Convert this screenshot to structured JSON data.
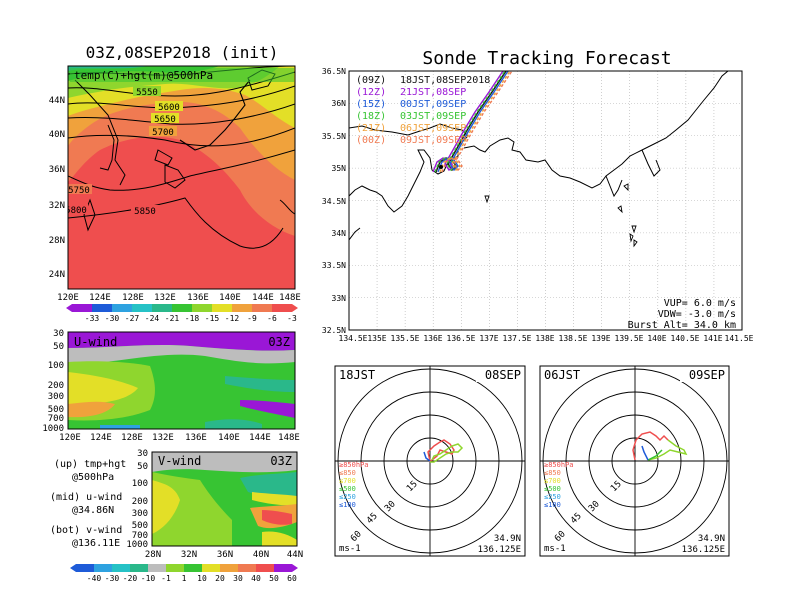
{
  "left_title": "03Z,08SEP2018 (init)",
  "right_title": "Sonde Tracking Forecast",
  "colors": {
    "purple": "#9a17d6",
    "blue": "#1e5bd8",
    "lightblue": "#2ea2e0",
    "cyan": "#26c2c6",
    "teal": "#2ab88a",
    "green": "#37c433",
    "lightgreen": "#8fd62e",
    "yellow": "#e3df27",
    "orange": "#f0a23c",
    "salmon": "#f07a52",
    "red": "#ef4e4e",
    "gray": "#bdbdbd"
  },
  "top_map": {
    "label": "temp(C)+hgt(m)@500hPa",
    "x_ticks": [
      "120E",
      "124E",
      "128E",
      "132E",
      "136E",
      "140E",
      "144E",
      "148E"
    ],
    "y_ticks": [
      "44N",
      "40N",
      "36N",
      "32N",
      "28N",
      "24N"
    ],
    "contour_labels": [
      "5550",
      "5600",
      "5650",
      "5700",
      "5750",
      "5800",
      "5850"
    ],
    "colorbar_labels": [
      "-33",
      "-30",
      "-27",
      "-24",
      "-21",
      "-18",
      "-15",
      "-12",
      "-9",
      "-6",
      "-3"
    ]
  },
  "uwind": {
    "label": "U-wind",
    "time": "03Z",
    "y_ticks": [
      "30",
      "50",
      "100",
      "200",
      "300",
      "500",
      "700",
      "1000"
    ],
    "x_ticks": [
      "120E",
      "124E",
      "128E",
      "132E",
      "136E",
      "140E",
      "144E",
      "148E"
    ]
  },
  "vwind": {
    "label": "V-wind",
    "time": "03Z",
    "y_ticks": [
      "30",
      "50",
      "100",
      "200",
      "300",
      "500",
      "700",
      "1000"
    ],
    "x_ticks": [
      "28N",
      "32N",
      "36N",
      "40N",
      "44N"
    ]
  },
  "legend_notes": [
    {
      "line1": "(up) tmp+hgt",
      "line2": "@500hPa"
    },
    {
      "line1": "(mid) u-wind",
      "line2": "@34.86N"
    },
    {
      "line1": "(bot) v-wind",
      "line2": "@136.11E"
    }
  ],
  "wind_colorbar_labels": [
    "-40",
    "-30",
    "-20",
    "-10",
    "-1",
    "1",
    "10",
    "20",
    "30",
    "40",
    "50",
    "60"
  ],
  "track_map": {
    "x_ticks": [
      "134.5E",
      "135E",
      "135.5E",
      "136E",
      "136.5E",
      "137E",
      "137.5E",
      "138E",
      "138.5E",
      "139E",
      "139.5E",
      "140E",
      "140.5E",
      "141E",
      "141.5E"
    ],
    "y_ticks": [
      "36.5N",
      "36N",
      "35.5N",
      "35N",
      "34.5N",
      "34N",
      "33.5N",
      "33N",
      "32.5N"
    ],
    "launch_legend": [
      {
        "code": "(09Z)",
        "time": "18JST,08SEP2018",
        "color": "#111111"
      },
      {
        "code": "(12Z)",
        "time": "21JST,08SEP",
        "color": "#9a17d6"
      },
      {
        "code": "(15Z)",
        "time": "00JST,09SEP",
        "color": "#1e5bd8"
      },
      {
        "code": "(18Z)",
        "time": "03JST,09SEP",
        "color": "#37c433"
      },
      {
        "code": "(21Z)",
        "time": "06JST,09SEP",
        "color": "#f0a23c"
      },
      {
        "code": "(00Z)",
        "time": "09JST,09SEP",
        "color": "#f07a52"
      }
    ],
    "params": [
      "VUP= 6.0 m/s",
      "VDW= -3.0 m/s",
      "Burst Alt= 34.0 km"
    ]
  },
  "hodographs": [
    {
      "time": "18JST",
      "date": "08SEP",
      "lat": "34.9N",
      "lon": "136.125E",
      "unit": "ms-1",
      "rings": [
        "15",
        "30",
        "45",
        "60"
      ],
      "levels": [
        "≥850hPa",
        "≤850",
        "≤700",
        "≤500",
        "≤250",
        "≤100"
      ]
    },
    {
      "time": "06JST",
      "date": "09SEP",
      "lat": "34.9N",
      "lon": "136.125E",
      "unit": "ms-1",
      "rings": [
        "15",
        "30",
        "45",
        "60"
      ],
      "levels": [
        "≥850hPa",
        "≤850",
        "≤700",
        "≤500",
        "≤250",
        "≤100"
      ]
    }
  ]
}
